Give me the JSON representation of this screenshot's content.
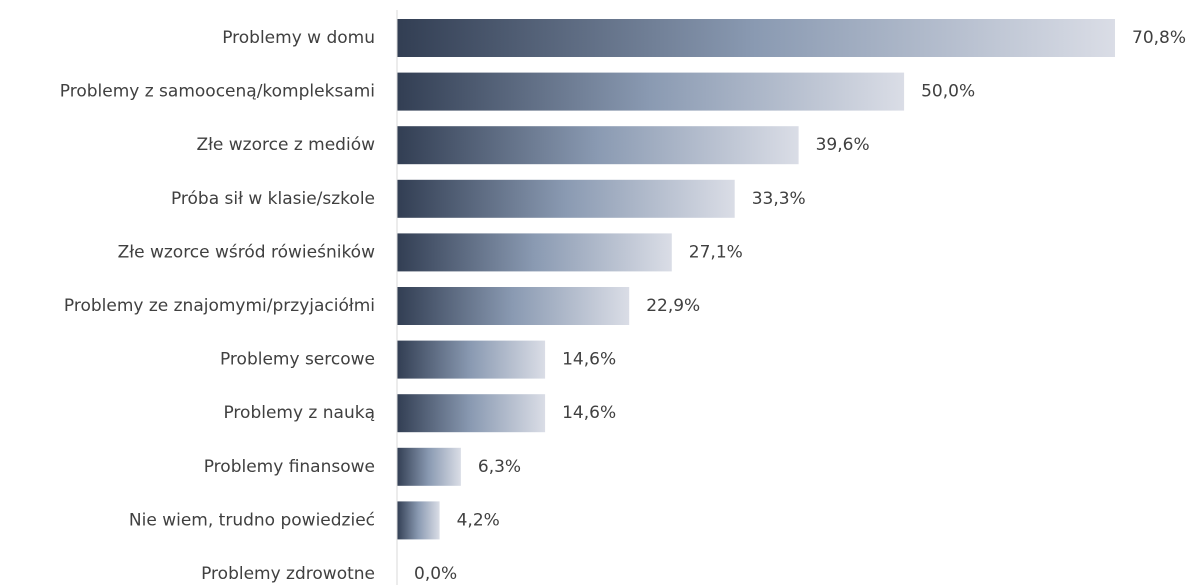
{
  "chart_data": {
    "type": "bar",
    "orientation": "horizontal",
    "categories": [
      "Problemy w domu",
      "Problemy z samooceną/kompleksami",
      "Złe wzorce z mediów",
      "Próba sił w klasie/szkole",
      "Złe wzorce wśród rówieśników",
      "Problemy ze znajomymi/przyjaciółmi",
      "Problemy sercowe",
      "Problemy z nauką",
      "Problemy finansowe",
      "Nie wiem, trudno powiedzieć",
      "Problemy zdrowotne"
    ],
    "values": [
      70.8,
      50.0,
      39.6,
      33.3,
      27.1,
      22.9,
      14.6,
      14.6,
      6.3,
      4.2,
      0.0
    ],
    "value_labels": [
      "70,8%",
      "50,0%",
      "39,6%",
      "33,3%",
      "27,1%",
      "22,9%",
      "14,6%",
      "14,6%",
      "6,3%",
      "4,2%",
      "0,0%"
    ],
    "title": "",
    "xlabel": "",
    "ylabel": "",
    "xlim": [
      0,
      70.8
    ],
    "grid": false,
    "legend": "none",
    "colors": {
      "bar_gradient_start": "#323e53",
      "bar_gradient_mid": "#8a9ab2",
      "bar_gradient_end": "#dadde6",
      "axis_line": "#d9d9d9",
      "text": "#404040"
    }
  }
}
